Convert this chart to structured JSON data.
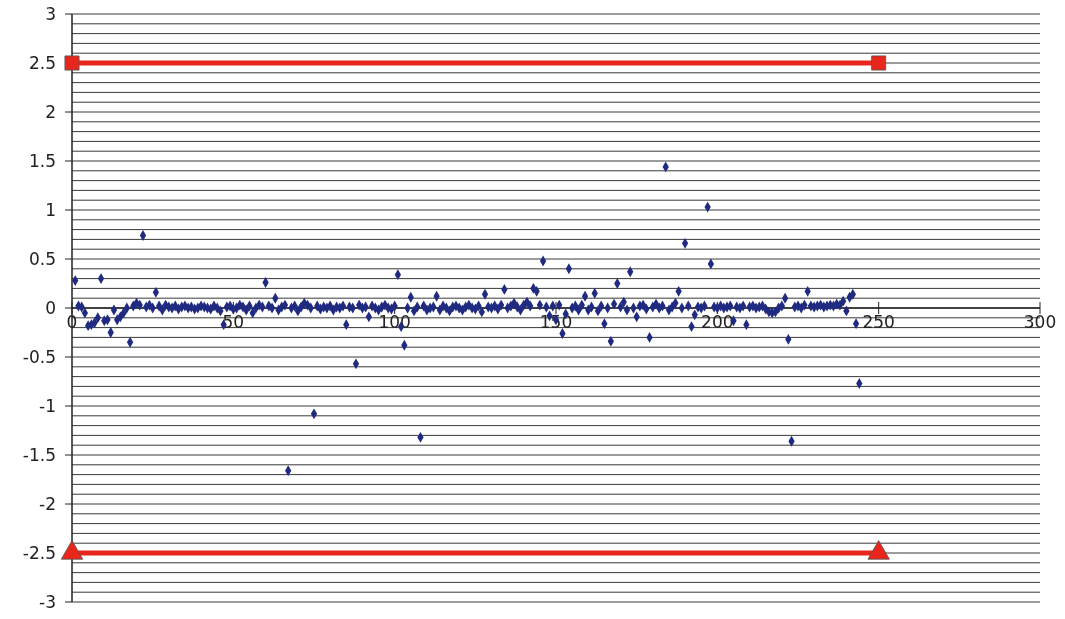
{
  "chart_data": {
    "type": "scatter",
    "xlim": [
      0,
      300
    ],
    "xticks": [
      0,
      50,
      100,
      150,
      200,
      250,
      300
    ],
    "ylim": [
      -3,
      3
    ],
    "yticks": [
      -3,
      {
        "value": -2.9,
        "label": null
      },
      {
        "value": -2.8,
        "label": null
      },
      {
        "value": -2.7,
        "label": null
      },
      {
        "value": -2.6,
        "label": null
      },
      -2.5,
      {
        "value": -2.4,
        "label": null
      },
      {
        "value": -2.3,
        "label": null
      },
      {
        "value": -2.2,
        "label": null
      },
      {
        "value": -2.1,
        "label": null
      },
      -2,
      {
        "value": -1.9,
        "label": null
      },
      {
        "value": -1.8,
        "label": null
      },
      {
        "value": -1.7,
        "label": null
      },
      {
        "value": -1.6,
        "label": null
      },
      -1.5,
      {
        "value": -1.4,
        "label": null
      },
      {
        "value": -1.3,
        "label": null
      },
      {
        "value": -1.2,
        "label": null
      },
      {
        "value": -1.1,
        "label": null
      },
      -1,
      {
        "value": -0.9,
        "label": null
      },
      {
        "value": -0.8,
        "label": null
      },
      {
        "value": -0.7,
        "label": null
      },
      {
        "value": -0.6,
        "label": null
      },
      -0.5,
      {
        "value": -0.4,
        "label": null
      },
      {
        "value": -0.3,
        "label": null
      },
      {
        "value": -0.2,
        "label": null
      },
      {
        "value": -0.1,
        "label": null
      },
      0,
      {
        "value": 0.1,
        "label": null
      },
      {
        "value": 0.2,
        "label": null
      },
      {
        "value": 0.3,
        "label": null
      },
      {
        "value": 0.4,
        "label": null
      },
      0.5,
      {
        "value": 0.6,
        "label": null
      },
      {
        "value": 0.7,
        "label": null
      },
      {
        "value": 0.8,
        "label": null
      },
      {
        "value": 0.9,
        "label": null
      },
      1,
      {
        "value": 1.1,
        "label": null
      },
      {
        "value": 1.2,
        "label": null
      },
      {
        "value": 1.3,
        "label": null
      },
      {
        "value": 1.4,
        "label": null
      },
      1.5,
      {
        "value": 1.6,
        "label": null
      },
      {
        "value": 1.7,
        "label": null
      },
      {
        "value": 1.8,
        "label": null
      },
      {
        "value": 1.9,
        "label": null
      },
      2,
      {
        "value": 2.1,
        "label": null
      },
      {
        "value": 2.2,
        "label": null
      },
      {
        "value": 2.3,
        "label": null
      },
      {
        "value": 2.4,
        "label": null
      },
      2.5,
      {
        "value": 2.6,
        "label": null
      },
      {
        "value": 2.7,
        "label": null
      },
      {
        "value": 2.8,
        "label": null
      },
      {
        "value": 2.9,
        "label": null
      },
      3
    ],
    "grid": "y",
    "series": [
      {
        "color": "#1f2a80",
        "marker": "diamond",
        "x": [
          1,
          2,
          3,
          4,
          5,
          6,
          7,
          8,
          9,
          10,
          11,
          12,
          13,
          14,
          15,
          16,
          17,
          18,
          19,
          20,
          21,
          22,
          23,
          24,
          25,
          26,
          27,
          28,
          29,
          30,
          31,
          32,
          33,
          34,
          35,
          36,
          37,
          38,
          39,
          40,
          41,
          42,
          43,
          44,
          45,
          46,
          47,
          48,
          49,
          50,
          51,
          52,
          53,
          54,
          55,
          56,
          57,
          58,
          59,
          60,
          61,
          62,
          63,
          64,
          65,
          66,
          67,
          68,
          69,
          70,
          71,
          72,
          73,
          74,
          75,
          76,
          77,
          78,
          79,
          80,
          81,
          82,
          83,
          84,
          85,
          86,
          87,
          88,
          89,
          90,
          91,
          92,
          93,
          94,
          95,
          96,
          97,
          98,
          99,
          100,
          101,
          102,
          103,
          104,
          105,
          106,
          107,
          108,
          109,
          110,
          111,
          112,
          113,
          114,
          115,
          116,
          117,
          118,
          119,
          120,
          121,
          122,
          123,
          124,
          125,
          126,
          127,
          128,
          129,
          130,
          131,
          132,
          133,
          134,
          135,
          136,
          137,
          138,
          139,
          140,
          141,
          142,
          143,
          144,
          145,
          146,
          147,
          148,
          149,
          150,
          151,
          152,
          153,
          154,
          155,
          156,
          157,
          158,
          159,
          160,
          161,
          162,
          163,
          164,
          165,
          166,
          167,
          168,
          169,
          170,
          171,
          172,
          173,
          174,
          175,
          176,
          177,
          178,
          179,
          180,
          181,
          182,
          183,
          184,
          185,
          186,
          187,
          188,
          189,
          190,
          191,
          192,
          193,
          194,
          195,
          196,
          197,
          198,
          199,
          200,
          201,
          202,
          203,
          204,
          205,
          206,
          207,
          208,
          209,
          210,
          211,
          212,
          213,
          214,
          215,
          216,
          217,
          218,
          219,
          220,
          221,
          222,
          223,
          224,
          225,
          226,
          227,
          228,
          229,
          230,
          231,
          232,
          233,
          234,
          235,
          236,
          237,
          238,
          239,
          240,
          241,
          242,
          243,
          244
        ],
        "values": [
          0.28,
          0.02,
          0.01,
          -0.05,
          -0.18,
          -0.17,
          -0.15,
          -0.1,
          0.3,
          -0.13,
          -0.12,
          -0.25,
          -0.02,
          -0.12,
          -0.09,
          -0.05,
          0.0,
          -0.35,
          0.02,
          0.05,
          0.03,
          0.74,
          0.01,
          0.03,
          0.0,
          0.16,
          0.02,
          -0.02,
          0.03,
          0.01,
          0.0,
          0.02,
          -0.01,
          0.01,
          0.02,
          0.0,
          0.01,
          -0.01,
          0.0,
          0.02,
          0.01,
          0.0,
          -0.01,
          0.02,
          0.0,
          -0.03,
          -0.17,
          0.01,
          0.02,
          -0.01,
          0.0,
          0.03,
          0.01,
          -0.02,
          0.02,
          -0.05,
          0.0,
          0.03,
          0.01,
          0.26,
          0.02,
          0.0,
          0.1,
          -0.02,
          0.01,
          0.03,
          -1.66,
          0.0,
          0.02,
          -0.03,
          0.01,
          0.05,
          0.03,
          0.0,
          -1.08,
          0.02,
          -0.01,
          0.01,
          0.0,
          0.02,
          -0.02,
          0.01,
          0.0,
          0.02,
          -0.17,
          0.01,
          0.0,
          -0.57,
          0.03,
          0.0,
          0.01,
          -0.09,
          0.02,
          0.0,
          -0.02,
          0.01,
          0.03,
          0.0,
          -0.01,
          0.02,
          0.34,
          -0.19,
          -0.38,
          0.0,
          0.11,
          -0.03,
          0.01,
          -1.32,
          0.02,
          -0.02,
          0.0,
          0.01,
          0.12,
          -0.02,
          0.02,
          0.0,
          -0.03,
          0.01,
          0.02,
          0.0,
          -0.02,
          0.01,
          0.03,
          0.0,
          -0.01,
          0.02,
          -0.04,
          0.14,
          0.01,
          0.0,
          0.02,
          -0.01,
          0.03,
          0.19,
          0.0,
          0.02,
          0.05,
          0.01,
          -0.02,
          0.03,
          0.06,
          0.02,
          0.2,
          0.17,
          0.03,
          0.48,
          0.01,
          -0.08,
          0.02,
          -0.12,
          0.03,
          -0.26,
          -0.06,
          0.4,
          0.0,
          0.02,
          -0.02,
          0.03,
          0.12,
          -0.02,
          0.01,
          0.15,
          -0.03,
          0.02,
          -0.16,
          0.0,
          -0.34,
          0.04,
          0.25,
          0.01,
          0.06,
          -0.02,
          0.37,
          0.0,
          -0.09,
          0.02,
          0.03,
          -0.01,
          -0.3,
          0.01,
          0.04,
          0.0,
          0.02,
          1.44,
          -0.02,
          0.01,
          0.05,
          0.17,
          0.0,
          0.66,
          0.02,
          -0.19,
          -0.07,
          0.01,
          0.0,
          0.02,
          1.03,
          0.45,
          0.01,
          0.0,
          0.02,
          0.0,
          0.01,
          0.02,
          -0.13,
          0.01,
          0.0,
          0.02,
          -0.17,
          0.01,
          0.02,
          0.0,
          0.01,
          0.02,
          -0.01,
          -0.04,
          -0.05,
          -0.04,
          0.0,
          0.02,
          0.1,
          -0.32,
          -1.36,
          0.01,
          0.02,
          0.0,
          0.03,
          0.17,
          0.02,
          0.01,
          0.02,
          0.03,
          0.01,
          0.02,
          0.03,
          0.02,
          0.04,
          0.03,
          0.07,
          -0.03,
          0.11,
          0.14,
          -0.16,
          -0.77
        ]
      },
      {
        "type": "line",
        "color": "#e8261c",
        "marker": "square",
        "x": [
          0,
          250
        ],
        "values": [
          2.5,
          2.5
        ]
      },
      {
        "type": "line",
        "color": "#e8261c",
        "marker": "triangle",
        "x": [
          0,
          250
        ],
        "values": [
          -2.5,
          -2.5
        ]
      }
    ]
  }
}
